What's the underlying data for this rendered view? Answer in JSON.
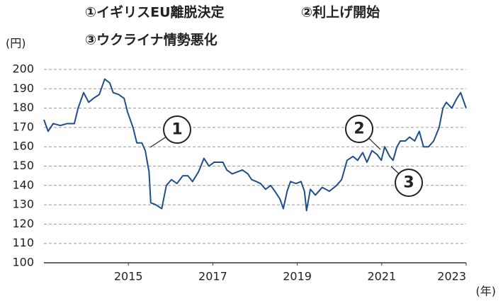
{
  "chart_data": {
    "type": "line",
    "y_label": "(円)",
    "x_label": "(年)",
    "annotations": [
      {
        "text": "①イギリスEU離脱決定",
        "marker": "1"
      },
      {
        "text": "②利上げ開始",
        "marker": "2"
      },
      {
        "text": "③ウクライナ情勢悪化",
        "marker": "3"
      }
    ],
    "xlim": [
      2013,
      2023
    ],
    "xticks": [
      2015,
      2017,
      2019,
      2021,
      2023
    ],
    "ylim": [
      100,
      200
    ],
    "yticks": [
      100,
      110,
      120,
      130,
      140,
      150,
      160,
      170,
      180,
      190,
      200
    ],
    "grid": true,
    "series": [
      {
        "color": "#1f4e8c",
        "x": [
          2013.0,
          2013.1,
          2013.22,
          2013.39,
          2013.55,
          2013.72,
          2013.81,
          2013.94,
          2014.06,
          2014.17,
          2014.31,
          2014.44,
          2014.56,
          2014.64,
          2014.77,
          2014.9,
          2014.98,
          2015.11,
          2015.2,
          2015.32,
          2015.4,
          2015.49,
          2015.53,
          2015.65,
          2015.79,
          2015.9,
          2016.02,
          2016.15,
          2016.29,
          2016.41,
          2016.52,
          2016.66,
          2016.79,
          2016.91,
          2017.03,
          2017.13,
          2017.24,
          2017.33,
          2017.46,
          2017.58,
          2017.7,
          2017.83,
          2017.92,
          2018.03,
          2018.13,
          2018.25,
          2018.37,
          2018.47,
          2018.59,
          2018.67,
          2018.76,
          2018.84,
          2018.97,
          2019.09,
          2019.17,
          2019.22,
          2019.31,
          2019.43,
          2019.59,
          2019.76,
          2019.93,
          2020.05,
          2020.18,
          2020.32,
          2020.43,
          2020.55,
          2020.65,
          2020.77,
          2020.89,
          2020.99,
          2021.07,
          2021.19,
          2021.27,
          2021.36,
          2021.44,
          2021.56,
          2021.66,
          2021.78,
          2021.89,
          2021.99,
          2022.11,
          2022.23,
          2022.36,
          2022.45,
          2022.53,
          2022.66,
          2022.78,
          2022.87,
          2022.95,
          2023.0
        ],
        "values": [
          174,
          168,
          172,
          171,
          172,
          172,
          180,
          188,
          183,
          185,
          187,
          195,
          193,
          188,
          187,
          185,
          178,
          170,
          162,
          162,
          158,
          147,
          131,
          130,
          128,
          140,
          143,
          141,
          145,
          145,
          142,
          147,
          154,
          150,
          152,
          152,
          152,
          148,
          146,
          147,
          148,
          146,
          143,
          142,
          141,
          138,
          140,
          137,
          133,
          128,
          137,
          142,
          141,
          142,
          137,
          127,
          138,
          135,
          139,
          137,
          140,
          143,
          153,
          155,
          153,
          157,
          152,
          158,
          156,
          153,
          160,
          155,
          153,
          160,
          163,
          163,
          165,
          163,
          168,
          160,
          160,
          163,
          170,
          180,
          183,
          180,
          185,
          188,
          183,
          180
        ]
      }
    ]
  }
}
